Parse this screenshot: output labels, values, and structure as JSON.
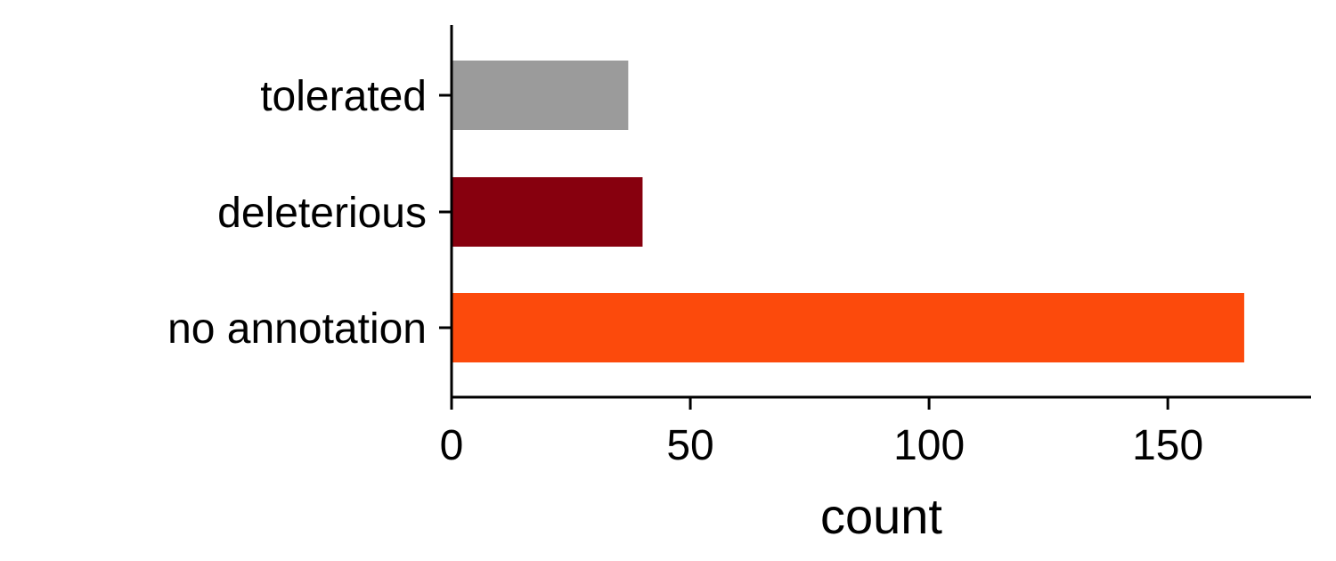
{
  "chart_data": {
    "type": "bar",
    "orientation": "horizontal",
    "categories": [
      "tolerated",
      "deleterious",
      "no annotation"
    ],
    "values": [
      37,
      40,
      166
    ],
    "colors": [
      "#9b9b9b",
      "#87000e",
      "#fc4a0c"
    ],
    "title": "",
    "xlabel": "count",
    "ylabel": "",
    "xlim": [
      0,
      180
    ],
    "xticks": [
      0,
      50,
      100,
      150
    ],
    "grid": false,
    "legend": "none"
  }
}
